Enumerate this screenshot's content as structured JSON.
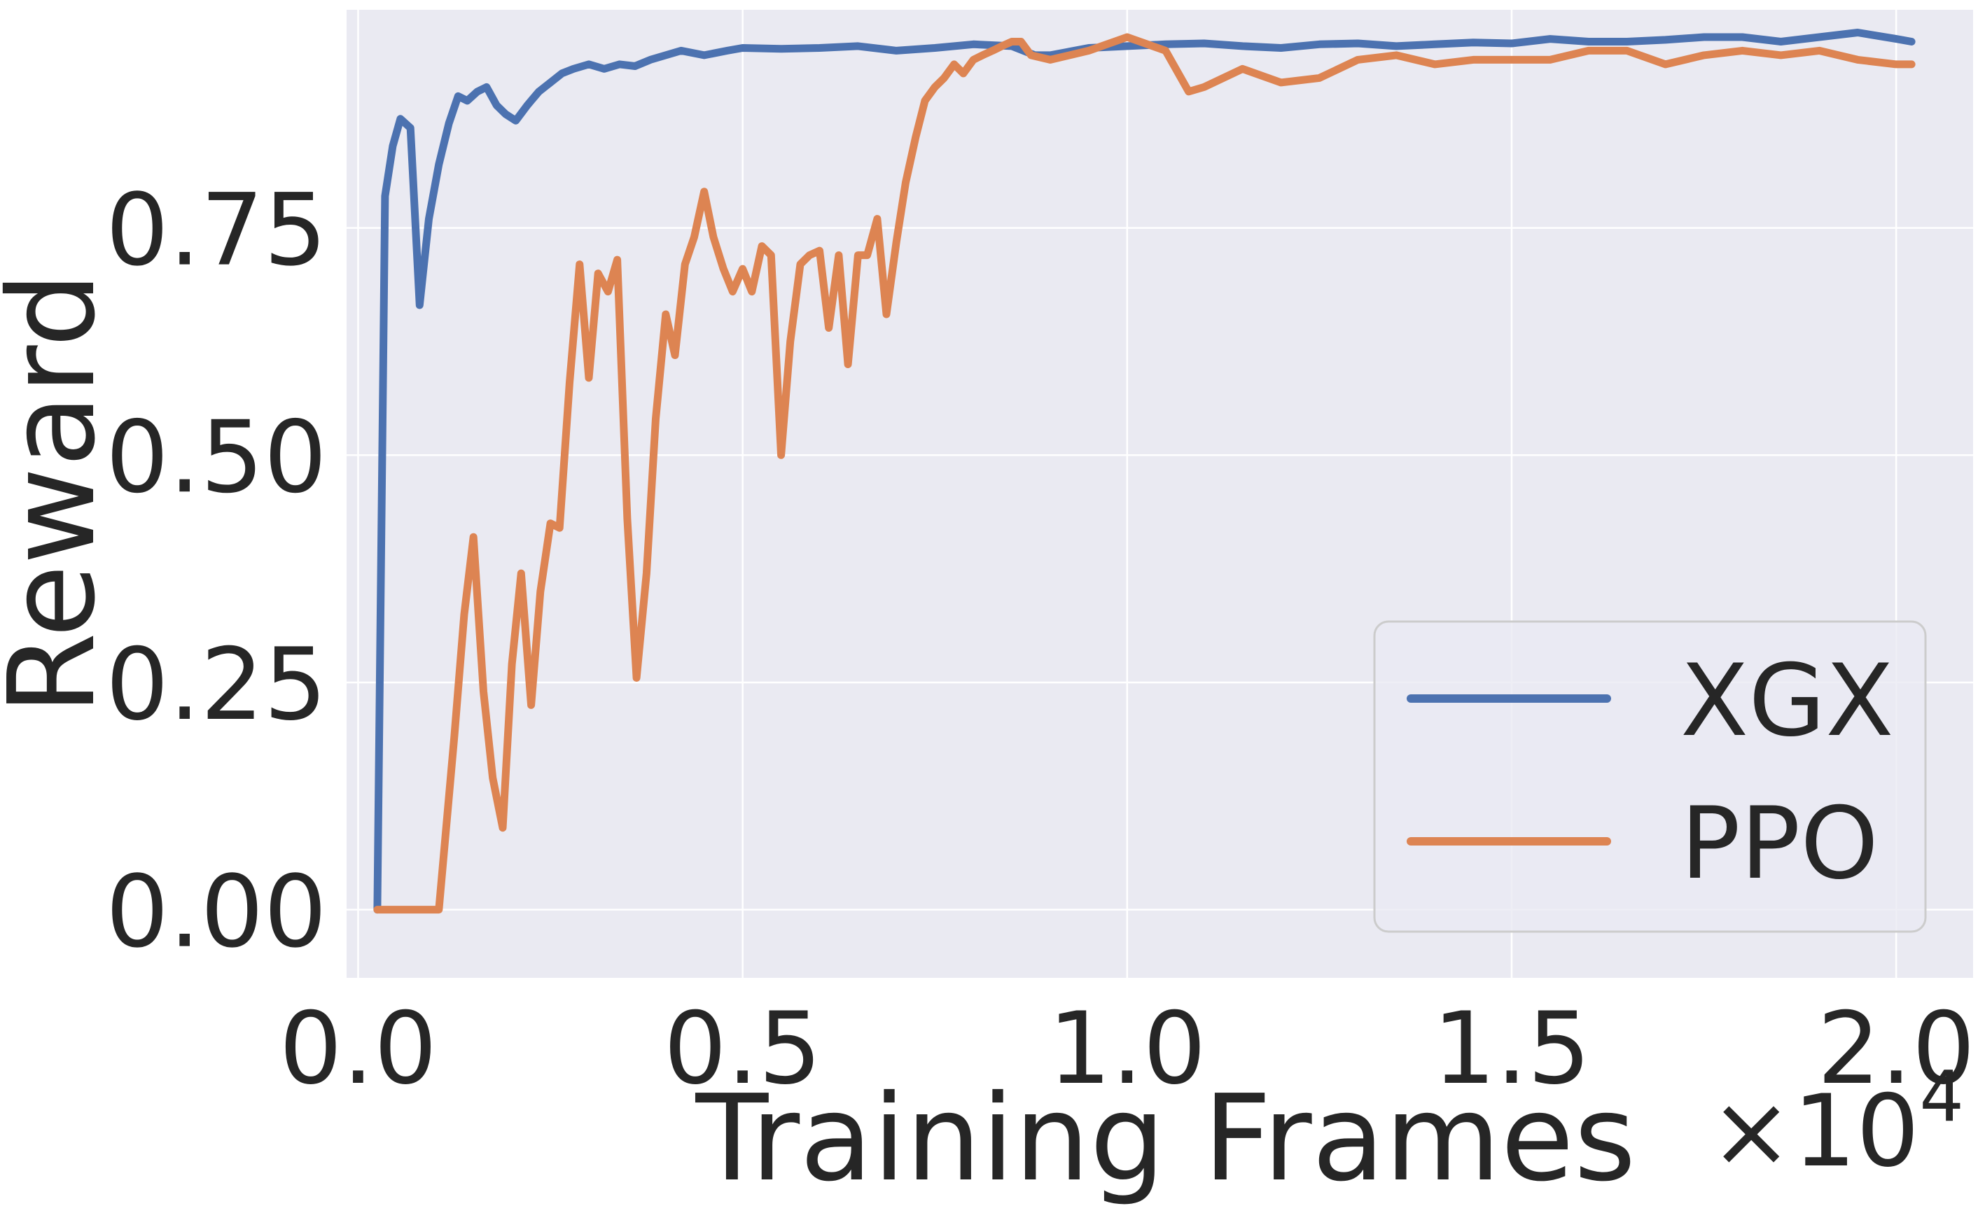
{
  "chart_data": {
    "type": "line",
    "title": "",
    "xlabel": "Training Frames",
    "ylabel": "Reward",
    "x_multiplier_label": "×10^4",
    "x_multiplier_base": "×10",
    "x_multiplier_exp": "4",
    "xlim": [
      -0.015,
      2.1
    ],
    "ylim": [
      -0.075,
      0.99
    ],
    "x_ticks": [
      0.0,
      0.5,
      1.0,
      1.5,
      2.0
    ],
    "x_tick_labels": [
      "0.0",
      "0.5",
      "1.0",
      "1.5",
      "2.0"
    ],
    "y_ticks": [
      0.0,
      0.25,
      0.5,
      0.75
    ],
    "y_tick_labels": [
      "0.00",
      "0.25",
      "0.50",
      "0.75"
    ],
    "grid": true,
    "legend_position": "lower-right",
    "colors": {
      "background": "#eaeaf2",
      "grid": "#ffffff",
      "text": "#262626"
    },
    "series": [
      {
        "name": "XGX",
        "color": "#4c72b0",
        "x": [
          0.025,
          0.035,
          0.045,
          0.055,
          0.068,
          0.08,
          0.092,
          0.105,
          0.118,
          0.13,
          0.142,
          0.155,
          0.167,
          0.18,
          0.192,
          0.205,
          0.22,
          0.235,
          0.25,
          0.265,
          0.28,
          0.3,
          0.32,
          0.34,
          0.36,
          0.38,
          0.4,
          0.42,
          0.45,
          0.48,
          0.5,
          0.55,
          0.6,
          0.65,
          0.7,
          0.75,
          0.8,
          0.85,
          0.88,
          0.9,
          0.95,
          1.0,
          1.05,
          1.1,
          1.15,
          1.2,
          1.25,
          1.3,
          1.35,
          1.4,
          1.45,
          1.5,
          1.55,
          1.6,
          1.65,
          1.7,
          1.75,
          1.8,
          1.85,
          1.9,
          1.95,
          2.0,
          2.02
        ],
        "y": [
          0.0,
          0.785,
          0.84,
          0.87,
          0.86,
          0.665,
          0.76,
          0.82,
          0.865,
          0.895,
          0.89,
          0.9,
          0.905,
          0.885,
          0.875,
          0.868,
          0.885,
          0.9,
          0.91,
          0.92,
          0.925,
          0.93,
          0.925,
          0.93,
          0.928,
          0.935,
          0.94,
          0.945,
          0.94,
          0.945,
          0.948,
          0.947,
          0.948,
          0.95,
          0.945,
          0.948,
          0.952,
          0.95,
          0.94,
          0.94,
          0.948,
          0.95,
          0.952,
          0.953,
          0.95,
          0.948,
          0.952,
          0.953,
          0.95,
          0.952,
          0.954,
          0.953,
          0.958,
          0.955,
          0.955,
          0.957,
          0.96,
          0.96,
          0.955,
          0.96,
          0.965,
          0.958,
          0.955
        ]
      },
      {
        "name": "PPO",
        "color": "#dd8452",
        "x": [
          0.025,
          0.05,
          0.08,
          0.105,
          0.125,
          0.138,
          0.15,
          0.163,
          0.175,
          0.188,
          0.2,
          0.212,
          0.225,
          0.237,
          0.25,
          0.262,
          0.275,
          0.288,
          0.3,
          0.312,
          0.325,
          0.337,
          0.35,
          0.362,
          0.375,
          0.387,
          0.4,
          0.412,
          0.425,
          0.437,
          0.45,
          0.462,
          0.475,
          0.487,
          0.5,
          0.512,
          0.525,
          0.537,
          0.55,
          0.562,
          0.575,
          0.587,
          0.6,
          0.612,
          0.625,
          0.637,
          0.65,
          0.662,
          0.675,
          0.687,
          0.7,
          0.712,
          0.725,
          0.737,
          0.75,
          0.762,
          0.775,
          0.787,
          0.8,
          0.812,
          0.825,
          0.837,
          0.85,
          0.862,
          0.875,
          0.9,
          0.95,
          1.0,
          1.05,
          1.08,
          1.1,
          1.15,
          1.2,
          1.25,
          1.3,
          1.35,
          1.4,
          1.45,
          1.5,
          1.55,
          1.6,
          1.65,
          1.7,
          1.75,
          1.8,
          1.85,
          1.9,
          1.95,
          2.0,
          2.02
        ],
        "y": [
          0.0,
          0.0,
          0.0,
          0.0,
          0.19,
          0.325,
          0.41,
          0.24,
          0.145,
          0.09,
          0.27,
          0.37,
          0.225,
          0.35,
          0.425,
          0.42,
          0.58,
          0.71,
          0.585,
          0.7,
          0.68,
          0.715,
          0.43,
          0.255,
          0.37,
          0.54,
          0.655,
          0.61,
          0.71,
          0.74,
          0.79,
          0.74,
          0.705,
          0.68,
          0.705,
          0.68,
          0.73,
          0.72,
          0.5,
          0.625,
          0.71,
          0.72,
          0.725,
          0.64,
          0.72,
          0.6,
          0.72,
          0.72,
          0.76,
          0.655,
          0.735,
          0.8,
          0.85,
          0.89,
          0.905,
          0.915,
          0.93,
          0.92,
          0.935,
          0.94,
          0.945,
          0.95,
          0.955,
          0.955,
          0.94,
          0.935,
          0.945,
          0.96,
          0.945,
          0.9,
          0.905,
          0.925,
          0.91,
          0.915,
          0.935,
          0.94,
          0.93,
          0.935,
          0.935,
          0.935,
          0.945,
          0.945,
          0.93,
          0.94,
          0.945,
          0.94,
          0.945,
          0.935,
          0.93,
          0.93
        ]
      }
    ]
  }
}
